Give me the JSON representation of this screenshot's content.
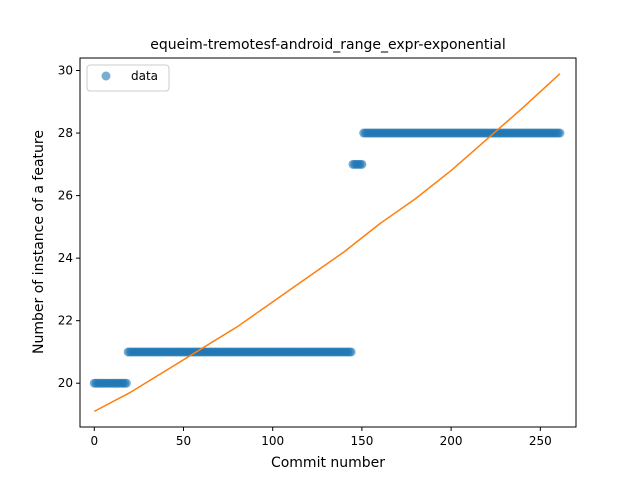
{
  "chart_data": {
    "type": "scatter",
    "title": "equeim-tremotesf-android_range_expr-exponential",
    "xlabel": "Commit number",
    "ylabel": "Number of instance of a feature",
    "xlim": [
      -8,
      270
    ],
    "ylim": [
      18.6,
      30.4
    ],
    "xticks": [
      0,
      50,
      100,
      150,
      200,
      250
    ],
    "yticks": [
      20,
      22,
      24,
      26,
      28,
      30
    ],
    "grid": false,
    "legend": {
      "position": "top-left",
      "entries": [
        "data"
      ]
    },
    "colors": {
      "data": "#1f77b4",
      "fit": "#ff7f0e"
    },
    "series": [
      {
        "name": "data",
        "kind": "scatter",
        "segments": [
          {
            "x_start": 0,
            "x_end": 18,
            "y": 20
          },
          {
            "x_start": 19,
            "x_end": 144,
            "y": 21
          },
          {
            "x_start": 145,
            "x_end": 150,
            "y": 27
          },
          {
            "x_start": 151,
            "x_end": 261,
            "y": 28
          }
        ]
      },
      {
        "kind": "line",
        "x": [
          0,
          20,
          40,
          60,
          80,
          100,
          120,
          140,
          160,
          180,
          200,
          220,
          240,
          261
        ],
        "y": [
          19.1,
          19.7,
          20.4,
          21.1,
          21.8,
          22.6,
          23.4,
          24.2,
          25.1,
          25.9,
          26.8,
          27.8,
          28.8,
          29.9
        ]
      }
    ]
  }
}
